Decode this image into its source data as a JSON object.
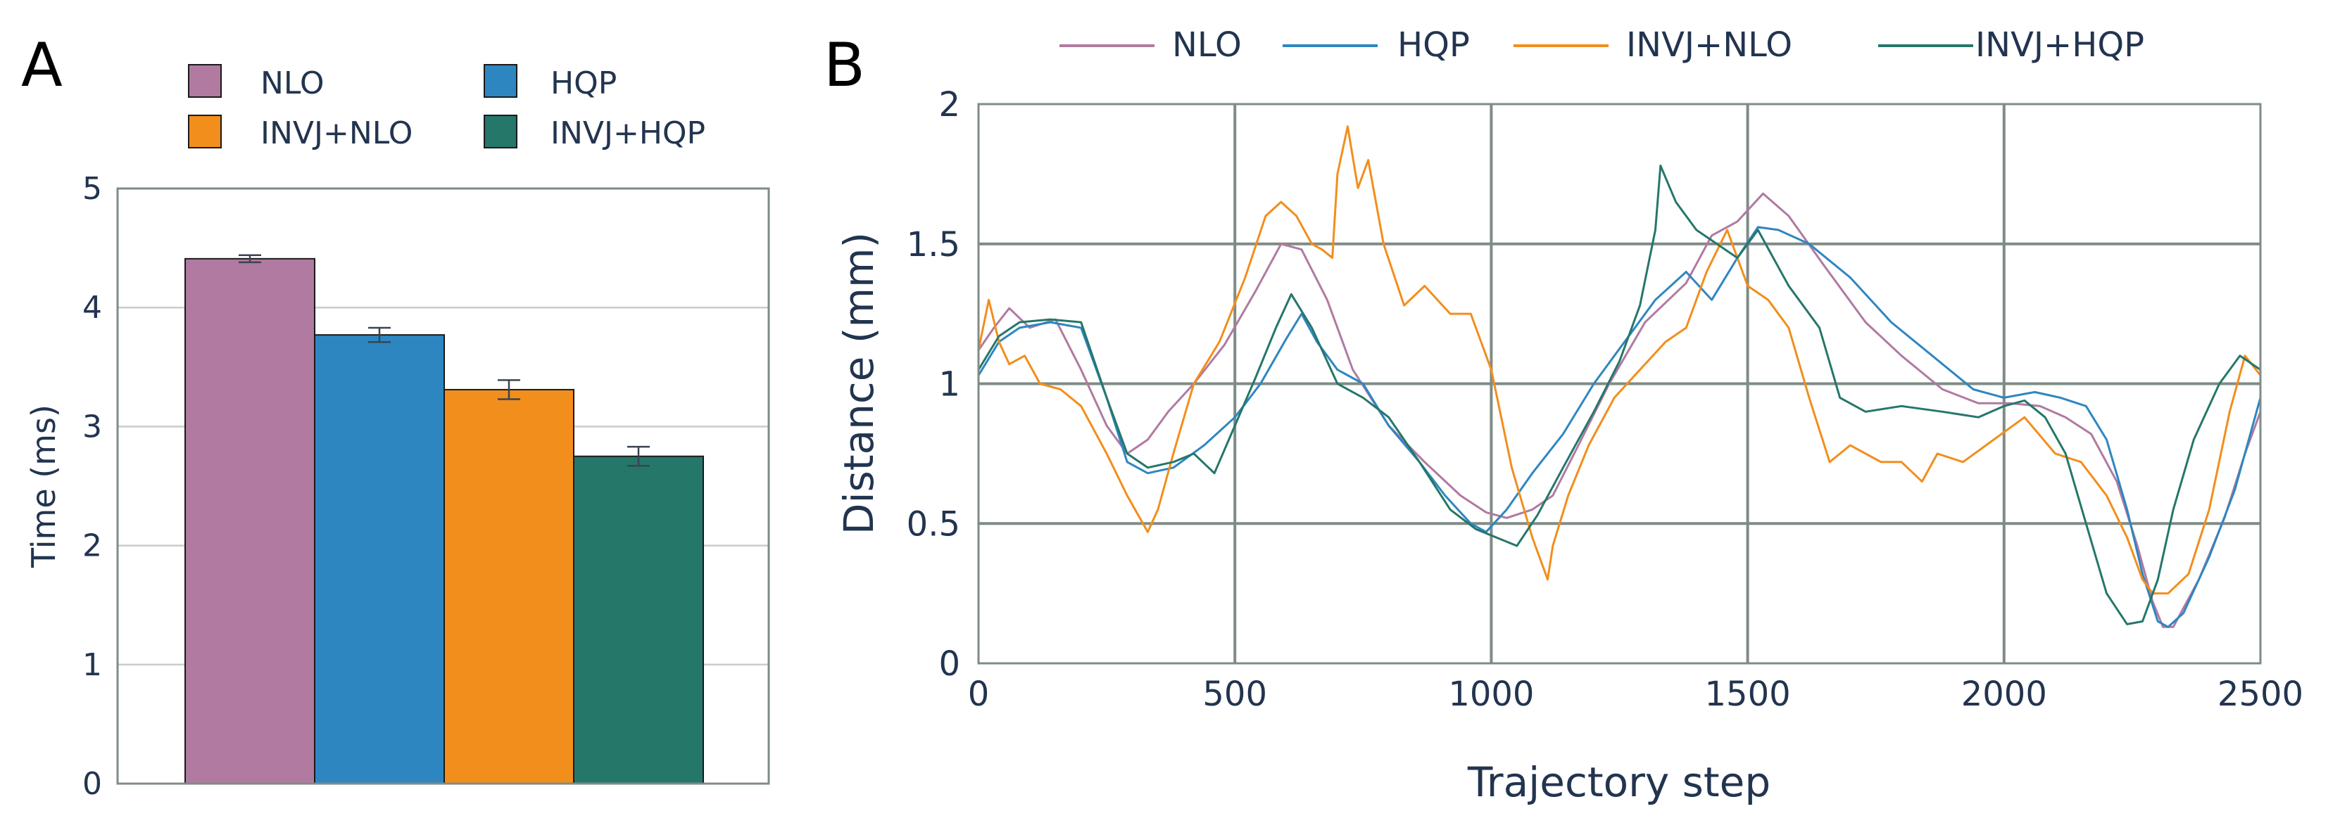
{
  "panels": {
    "a": {
      "label": "A"
    },
    "b": {
      "label": "B"
    }
  },
  "colors": {
    "NLO": "#b07aa1",
    "HQP": "#2e86c1",
    "INVJ+NLO": "#f28e1c",
    "INVJ+HQP": "#25776a",
    "axis_text": "#22344f",
    "grid": "#7f8c86",
    "frame": "#7f8c86"
  },
  "chart_data": [
    {
      "type": "bar",
      "panel": "A",
      "title": "",
      "xlabel": "",
      "ylabel": "Time (ms)",
      "ylim": [
        0,
        5
      ],
      "yticks": [
        "0",
        "1",
        "2",
        "3",
        "4",
        "5"
      ],
      "grid": true,
      "legend": {
        "placement": "top",
        "entries": [
          "NLO",
          "HQP",
          "INVJ+NLO",
          "INVJ+HQP"
        ]
      },
      "categories": [
        "NLO",
        "HQP",
        "INVJ+NLO",
        "INVJ+HQP"
      ],
      "values": [
        4.41,
        3.77,
        3.31,
        2.75
      ],
      "errors": [
        0.03,
        0.06,
        0.08,
        0.08
      ]
    },
    {
      "type": "line",
      "panel": "B",
      "title": "",
      "xlabel": "Trajectory step",
      "ylabel": "Distance (mm)",
      "xlim": [
        0,
        2500
      ],
      "ylim": [
        0,
        2
      ],
      "xticks": [
        "0",
        "500",
        "1000",
        "1500",
        "2000",
        "2500"
      ],
      "yticks": [
        "0",
        "0.5",
        "1",
        "1.5",
        "2"
      ],
      "grid": true,
      "legend": {
        "placement": "top",
        "entries": [
          "NLO",
          "HQP",
          "INVJ+NLO",
          "INVJ+HQP"
        ]
      },
      "series": [
        {
          "name": "NLO",
          "x": [
            0,
            30,
            60,
            100,
            150,
            200,
            250,
            290,
            330,
            370,
            420,
            480,
            540,
            590,
            630,
            680,
            730,
            800,
            870,
            940,
            990,
            1030,
            1080,
            1120,
            1170,
            1230,
            1300,
            1380,
            1430,
            1480,
            1530,
            1580,
            1650,
            1730,
            1800,
            1880,
            1950,
            2010,
            2070,
            2120,
            2170,
            2220,
            2260,
            2290,
            2310,
            2330,
            2380,
            2430,
            2470,
            2500
          ],
          "y": [
            1.12,
            1.2,
            1.27,
            1.2,
            1.23,
            1.05,
            0.85,
            0.75,
            0.8,
            0.9,
            1.0,
            1.14,
            1.33,
            1.5,
            1.48,
            1.3,
            1.05,
            0.85,
            0.72,
            0.6,
            0.54,
            0.52,
            0.55,
            0.6,
            0.78,
            1.0,
            1.22,
            1.36,
            1.53,
            1.58,
            1.68,
            1.6,
            1.42,
            1.22,
            1.1,
            0.98,
            0.93,
            0.93,
            0.92,
            0.88,
            0.82,
            0.65,
            0.42,
            0.22,
            0.13,
            0.13,
            0.3,
            0.52,
            0.75,
            0.9
          ]
        },
        {
          "name": "HQP",
          "x": [
            0,
            40,
            80,
            140,
            200,
            250,
            290,
            330,
            380,
            440,
            500,
            550,
            600,
            630,
            660,
            700,
            750,
            800,
            860,
            910,
            960,
            990,
            1030,
            1080,
            1140,
            1200,
            1260,
            1320,
            1380,
            1430,
            1480,
            1520,
            1560,
            1620,
            1700,
            1780,
            1860,
            1940,
            2000,
            2060,
            2110,
            2160,
            2200,
            2240,
            2270,
            2300,
            2320,
            2350,
            2400,
            2450,
            2500
          ],
          "y": [
            1.03,
            1.15,
            1.2,
            1.22,
            1.2,
            0.95,
            0.72,
            0.68,
            0.7,
            0.78,
            0.88,
            1.0,
            1.16,
            1.25,
            1.15,
            1.05,
            1.0,
            0.85,
            0.72,
            0.6,
            0.5,
            0.47,
            0.55,
            0.68,
            0.82,
            1.0,
            1.15,
            1.3,
            1.4,
            1.3,
            1.45,
            1.56,
            1.55,
            1.5,
            1.38,
            1.22,
            1.1,
            0.98,
            0.95,
            0.97,
            0.95,
            0.92,
            0.8,
            0.55,
            0.32,
            0.15,
            0.13,
            0.18,
            0.38,
            0.62,
            0.95
          ]
        },
        {
          "name": "INVJ+NLO",
          "x": [
            0,
            20,
            40,
            60,
            90,
            120,
            160,
            200,
            250,
            290,
            330,
            350,
            380,
            420,
            470,
            520,
            560,
            590,
            620,
            650,
            670,
            690,
            700,
            720,
            740,
            760,
            790,
            830,
            870,
            920,
            960,
            1000,
            1040,
            1080,
            1110,
            1120,
            1150,
            1190,
            1240,
            1290,
            1340,
            1380,
            1420,
            1460,
            1500,
            1540,
            1580,
            1620,
            1660,
            1700,
            1760,
            1800,
            1840,
            1870,
            1920,
            1980,
            2040,
            2100,
            2150,
            2200,
            2240,
            2270,
            2290,
            2320,
            2360,
            2400,
            2440,
            2470,
            2500
          ],
          "y": [
            1.12,
            1.3,
            1.15,
            1.07,
            1.1,
            1.0,
            0.98,
            0.92,
            0.75,
            0.6,
            0.47,
            0.55,
            0.75,
            1.0,
            1.15,
            1.38,
            1.6,
            1.65,
            1.6,
            1.5,
            1.48,
            1.45,
            1.75,
            1.92,
            1.7,
            1.8,
            1.5,
            1.28,
            1.35,
            1.25,
            1.25,
            1.05,
            0.7,
            0.45,
            0.3,
            0.42,
            0.6,
            0.78,
            0.95,
            1.05,
            1.15,
            1.2,
            1.4,
            1.55,
            1.35,
            1.3,
            1.2,
            0.95,
            0.72,
            0.78,
            0.72,
            0.72,
            0.65,
            0.75,
            0.72,
            0.8,
            0.88,
            0.75,
            0.72,
            0.6,
            0.45,
            0.3,
            0.25,
            0.25,
            0.32,
            0.55,
            0.9,
            1.1,
            1.03
          ]
        },
        {
          "name": "INVJ+HQP",
          "x": [
            0,
            40,
            80,
            140,
            200,
            250,
            290,
            330,
            380,
            420,
            460,
            500,
            540,
            580,
            610,
            650,
            700,
            750,
            800,
            860,
            920,
            970,
            1010,
            1050,
            1090,
            1140,
            1200,
            1250,
            1290,
            1320,
            1330,
            1360,
            1400,
            1440,
            1480,
            1520,
            1580,
            1640,
            1680,
            1730,
            1800,
            1880,
            1950,
            2000,
            2040,
            2080,
            2120,
            2160,
            2200,
            2240,
            2270,
            2300,
            2330,
            2370,
            2420,
            2460,
            2500
          ],
          "y": [
            1.05,
            1.17,
            1.22,
            1.23,
            1.22,
            0.95,
            0.75,
            0.7,
            0.72,
            0.75,
            0.68,
            0.85,
            1.02,
            1.2,
            1.32,
            1.2,
            1.0,
            0.95,
            0.88,
            0.72,
            0.55,
            0.48,
            0.45,
            0.42,
            0.53,
            0.7,
            0.9,
            1.08,
            1.28,
            1.55,
            1.78,
            1.65,
            1.55,
            1.5,
            1.45,
            1.55,
            1.35,
            1.2,
            0.95,
            0.9,
            0.92,
            0.9,
            0.88,
            0.92,
            0.94,
            0.88,
            0.75,
            0.5,
            0.25,
            0.14,
            0.15,
            0.3,
            0.55,
            0.8,
            1.0,
            1.1,
            1.05
          ]
        }
      ]
    }
  ]
}
